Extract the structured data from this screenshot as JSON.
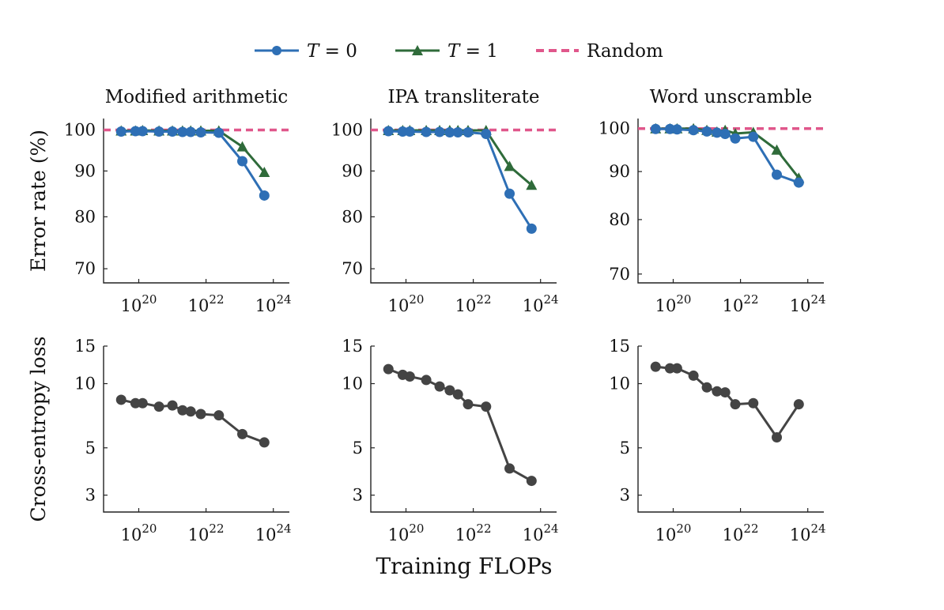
{
  "legend": [
    {
      "label": "T = 0",
      "var": "T",
      "rest": " = 0",
      "color": "#2e6fb5",
      "marker": "circle"
    },
    {
      "label": "T = 1",
      "var": "T",
      "rest": " = 1",
      "color": "#2f6b3a",
      "marker": "triangle"
    },
    {
      "label": "Random",
      "color": "#e0578b",
      "marker": "dashed-line"
    }
  ],
  "xlabel": "Training FLOPs",
  "chart_data": [
    {
      "type": "line",
      "row": "error",
      "title": "Modified arithmetic",
      "ylabel": "Error rate (%)",
      "yscale": "log",
      "ylim": [
        67.5,
        103
      ],
      "yticks": [
        70,
        80,
        90,
        100
      ],
      "xscale": "log",
      "xlim": [
        9e+18,
        3e+24
      ],
      "xticks": [
        "10^20",
        "10^22",
        "10^24"
      ],
      "random": 100,
      "x": [
        3e+19,
        8e+19,
        1.3e+20,
        4e+20,
        1e+21,
        2e+21,
        3.5e+21,
        7e+21,
        2.4e+22,
        1.2e+23,
        5.4e+23
      ],
      "series": [
        {
          "name": "T = 0",
          "values": [
            99.6,
            99.7,
            99.7,
            99.6,
            99.6,
            99.5,
            99.5,
            99.4,
            99.3,
            92.3,
            84.5
          ]
        },
        {
          "name": "T = 1",
          "values": [
            99.8,
            99.8,
            99.9,
            99.8,
            99.8,
            99.8,
            99.8,
            99.8,
            99.8,
            95.8,
            89.7
          ]
        }
      ]
    },
    {
      "type": "line",
      "row": "error",
      "title": "IPA transliterate",
      "ylabel": "",
      "yscale": "log",
      "ylim": [
        67.5,
        103
      ],
      "yticks": [
        70,
        80,
        90,
        100
      ],
      "xscale": "log",
      "xlim": [
        9e+18,
        3e+24
      ],
      "xticks": [
        "10^20",
        "10^22",
        "10^24"
      ],
      "random": 100,
      "x": [
        3e+19,
        8e+19,
        1.3e+20,
        4e+20,
        1e+21,
        2e+21,
        3.5e+21,
        7e+21,
        2.4e+22,
        1.2e+23,
        5.4e+23
      ],
      "series": [
        {
          "name": "T = 0",
          "values": [
            99.7,
            99.6,
            99.6,
            99.5,
            99.5,
            99.4,
            99.4,
            99.4,
            99.0,
            84.9,
            77.6
          ]
        },
        {
          "name": "T = 1",
          "values": [
            99.9,
            99.9,
            99.9,
            99.9,
            99.9,
            99.9,
            99.9,
            99.9,
            99.9,
            91.1,
            86.8
          ]
        }
      ]
    },
    {
      "type": "line",
      "row": "error",
      "title": "Word unscramble",
      "ylabel": "",
      "yscale": "log",
      "ylim": [
        68.5,
        102.5
      ],
      "yticks": [
        70,
        80,
        90,
        100
      ],
      "xscale": "log",
      "xlim": [
        9e+18,
        3e+24
      ],
      "xticks": [
        "10^20",
        "10^22",
        "10^24"
      ],
      "random": 100,
      "x": [
        3e+19,
        8e+19,
        1.3e+20,
        4e+20,
        1e+21,
        2e+21,
        3.5e+21,
        7e+21,
        2.4e+22,
        1.2e+23,
        5.4e+23
      ],
      "series": [
        {
          "name": "T = 0",
          "values": [
            99.9,
            99.9,
            99.8,
            99.6,
            99.3,
            99.0,
            98.7,
            97.6,
            98.0,
            89.3,
            87.6
          ]
        },
        {
          "name": "T = 1",
          "values": [
            100.0,
            100.0,
            100.0,
            100.0,
            99.6,
            99.2,
            99.6,
            98.8,
            99.1,
            94.9,
            88.6
          ]
        }
      ]
    },
    {
      "type": "line",
      "row": "loss",
      "title": "",
      "ylabel": "Cross-entropy loss",
      "yscale": "log",
      "ylim": [
        2.5,
        15
      ],
      "yticks": [
        3,
        5,
        10,
        15
      ],
      "xscale": "log",
      "xlim": [
        9e+18,
        3e+24
      ],
      "xticks": [
        "10^20",
        "10^22",
        "10^24"
      ],
      "x": [
        3e+19,
        8e+19,
        1.3e+20,
        4e+20,
        1e+21,
        2e+21,
        3.5e+21,
        7e+21,
        2.4e+22,
        1.2e+23,
        5.4e+23
      ],
      "series": [
        {
          "name": "",
          "values": [
            8.4,
            8.1,
            8.1,
            7.8,
            7.9,
            7.5,
            7.4,
            7.2,
            7.1,
            5.8,
            5.3
          ]
        }
      ]
    },
    {
      "type": "line",
      "row": "loss",
      "title": "",
      "ylabel": "",
      "yscale": "log",
      "ylim": [
        2.5,
        15
      ],
      "yticks": [
        3,
        5,
        10,
        15
      ],
      "xscale": "log",
      "xlim": [
        9e+18,
        3e+24
      ],
      "xticks": [
        "10^20",
        "10^22",
        "10^24"
      ],
      "x": [
        3e+19,
        8e+19,
        1.3e+20,
        4e+20,
        1e+21,
        2e+21,
        3.5e+21,
        7e+21,
        2.4e+22,
        1.2e+23,
        5.4e+23
      ],
      "series": [
        {
          "name": "",
          "values": [
            11.7,
            11.0,
            10.8,
            10.4,
            9.7,
            9.3,
            8.9,
            8.0,
            7.8,
            4.0,
            3.5
          ]
        }
      ]
    },
    {
      "type": "line",
      "row": "loss",
      "title": "",
      "ylabel": "",
      "yscale": "log",
      "ylim": [
        2.5,
        15
      ],
      "yticks": [
        3,
        5,
        10,
        15
      ],
      "xscale": "log",
      "xlim": [
        9e+18,
        3e+24
      ],
      "xticks": [
        "10^20",
        "10^22",
        "10^24"
      ],
      "x": [
        3e+19,
        8e+19,
        1.3e+20,
        4e+20,
        1e+21,
        2e+21,
        3.5e+21,
        7e+21,
        2.4e+22,
        1.2e+23,
        5.4e+23
      ],
      "series": [
        {
          "name": "",
          "values": [
            12.0,
            11.8,
            11.8,
            10.9,
            9.6,
            9.2,
            9.1,
            8.0,
            8.1,
            5.6,
            8.0
          ]
        }
      ]
    }
  ]
}
